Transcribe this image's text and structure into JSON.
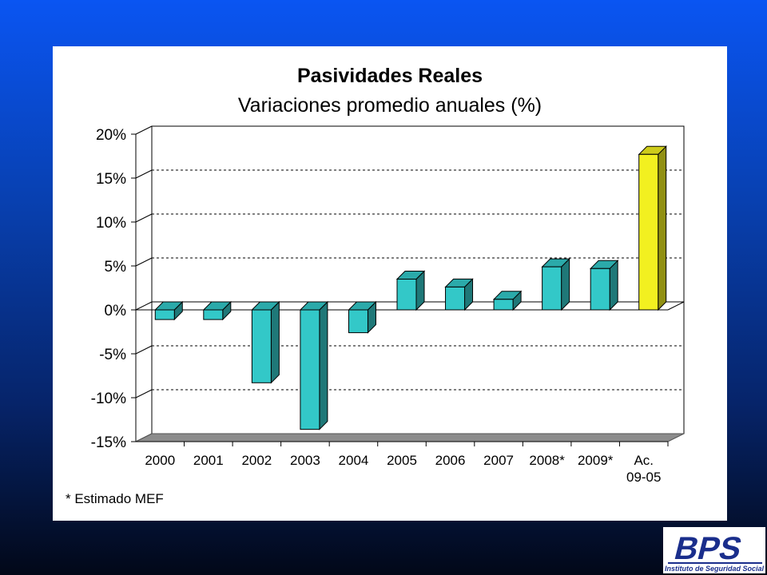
{
  "chart_data": {
    "type": "bar",
    "title": "Pasividades Reales",
    "subtitle": "Variaciones promedio anuales (%)",
    "categories": [
      "2000",
      "2001",
      "2002",
      "2003",
      "2004",
      "2005",
      "2006",
      "2007",
      "2008*",
      "2009*",
      "Ac.\n09-05"
    ],
    "values": [
      -1.1,
      -1.1,
      -8.3,
      -13.6,
      -2.6,
      3.5,
      2.6,
      1.2,
      4.9,
      4.7,
      17.7
    ],
    "bar_colors": [
      "#33c8c8",
      "#33c8c8",
      "#33c8c8",
      "#33c8c8",
      "#33c8c8",
      "#33c8c8",
      "#33c8c8",
      "#33c8c8",
      "#33c8c8",
      "#33c8c8",
      "#f2f020"
    ],
    "ylim": [
      -15,
      20
    ],
    "yticks": [
      20,
      15,
      10,
      5,
      0,
      -5,
      -10,
      -15
    ],
    "ytick_labels": [
      "20%",
      "15%",
      "10%",
      "5%",
      "0%",
      "-5%",
      "-10%",
      "-15%"
    ],
    "grid": true,
    "legend": "none",
    "footnote": "* Estimado MEF"
  },
  "logo": {
    "text": "BPS",
    "caption": "Instituto de Seguridad Social",
    "color": "#1a2e8c"
  }
}
